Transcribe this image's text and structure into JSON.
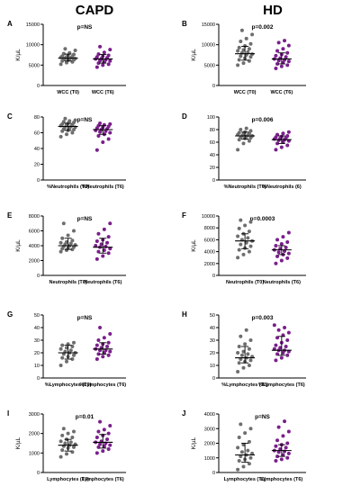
{
  "figure": {
    "col_titles": [
      "CAPD",
      "HD"
    ],
    "colors": {
      "t0": "#6e6e6e",
      "t6": "#7a1f8c",
      "axis": "#000000"
    }
  },
  "chart_data": [
    {
      "type": "scatter",
      "panel": "A",
      "column": "CAPD",
      "ylabel": "K/µL",
      "annotation": "p=NS",
      "ylim": [
        0,
        15000
      ],
      "yticks": [
        0,
        5000,
        10000,
        15000
      ],
      "categories": [
        "WCC (T0)",
        "WCC (T6)"
      ],
      "series": [
        {
          "values": [
            5200,
            5600,
            5800,
            6000,
            6200,
            6300,
            6400,
            6500,
            6600,
            6700,
            6800,
            6900,
            7000,
            7100,
            7200,
            7400,
            7600,
            7800,
            8000,
            8600,
            9000
          ],
          "summary": {
            "center": 6700,
            "low": 6000,
            "high": 7700
          }
        },
        {
          "values": [
            4500,
            5000,
            5200,
            5500,
            5800,
            6000,
            6100,
            6300,
            6500,
            6600,
            6800,
            7000,
            7200,
            7400,
            7700,
            8100,
            8800,
            9500
          ],
          "summary": {
            "center": 6500,
            "low": 5500,
            "high": 7600
          }
        }
      ]
    },
    {
      "type": "scatter",
      "panel": "B",
      "column": "HD",
      "ylabel": "K/µL",
      "annotation": "p=0.002",
      "ylim": [
        0,
        15000
      ],
      "yticks": [
        0,
        5000,
        10000,
        15000
      ],
      "categories": [
        "WCC (T0)",
        "WCC (T6)"
      ],
      "series": [
        {
          "values": [
            5000,
            5500,
            6000,
            6300,
            6700,
            7000,
            7200,
            7500,
            7700,
            8000,
            8200,
            8500,
            8700,
            9000,
            9300,
            9700,
            10200,
            10800,
            11500,
            12500,
            13500
          ],
          "summary": {
            "center": 7800,
            "low": 6200,
            "high": 9600
          }
        },
        {
          "values": [
            4200,
            4700,
            5000,
            5300,
            5600,
            5900,
            6100,
            6300,
            6500,
            6700,
            7000,
            7300,
            7600,
            8000,
            8500,
            9000,
            9800,
            10500,
            11000
          ],
          "summary": {
            "center": 6500,
            "low": 5300,
            "high": 8000
          }
        }
      ]
    },
    {
      "type": "scatter",
      "panel": "C",
      "column": "CAPD",
      "ylabel": "",
      "annotation": "p=NS",
      "ylim": [
        0,
        80
      ],
      "yticks": [
        0,
        20,
        40,
        60,
        80
      ],
      "categories": [
        "%Neutrophils (T0)",
        "%Neutrophils (T6)"
      ],
      "series": [
        {
          "values": [
            55,
            58,
            60,
            62,
            63,
            64,
            65,
            66,
            67,
            67,
            68,
            69,
            70,
            70,
            71,
            72,
            73,
            74,
            75,
            76,
            78
          ],
          "summary": {
            "center": 68,
            "low": 63,
            "high": 72
          }
        },
        {
          "values": [
            38,
            48,
            52,
            56,
            58,
            60,
            61,
            62,
            63,
            64,
            65,
            66,
            67,
            68,
            69,
            70,
            71,
            72
          ],
          "summary": {
            "center": 64,
            "low": 58,
            "high": 69
          }
        }
      ]
    },
    {
      "type": "scatter",
      "panel": "D",
      "column": "HD",
      "ylabel": "",
      "annotation": "p=0.006",
      "ylim": [
        0,
        100
      ],
      "yticks": [
        0,
        20,
        40,
        60,
        80,
        100
      ],
      "categories": [
        "%Neutrophils (T0)",
        "%Neutrophils (6)"
      ],
      "series": [
        {
          "values": [
            48,
            58,
            62,
            64,
            66,
            67,
            68,
            69,
            70,
            70,
            71,
            72,
            73,
            74,
            75,
            76,
            78,
            80,
            82
          ],
          "summary": {
            "center": 70,
            "low": 65,
            "high": 76
          }
        },
        {
          "values": [
            48,
            52,
            55,
            58,
            60,
            62,
            63,
            64,
            65,
            66,
            67,
            68,
            69,
            70,
            72,
            74,
            76
          ],
          "summary": {
            "center": 64,
            "low": 58,
            "high": 70
          }
        }
      ]
    },
    {
      "type": "scatter",
      "panel": "E",
      "column": "CAPD",
      "ylabel": "K/µL",
      "annotation": "p=NS",
      "ylim": [
        0,
        8000
      ],
      "yticks": [
        0,
        2000,
        4000,
        6000,
        8000
      ],
      "categories": [
        "Neutrophils (T0)",
        "Neutrophils (T6)"
      ],
      "series": [
        {
          "values": [
            3200,
            3400,
            3500,
            3600,
            3700,
            3800,
            3900,
            4000,
            4100,
            4200,
            4300,
            4400,
            4500,
            4700,
            5000,
            5400,
            6000,
            7000
          ],
          "summary": {
            "center": 4000,
            "low": 3500,
            "high": 5000
          }
        },
        {
          "values": [
            2200,
            2600,
            3000,
            3200,
            3400,
            3600,
            3800,
            3900,
            4000,
            4200,
            4400,
            4600,
            4800,
            5200,
            5600,
            6200,
            7000
          ],
          "summary": {
            "center": 3800,
            "low": 3000,
            "high": 5000
          }
        }
      ]
    },
    {
      "type": "scatter",
      "panel": "F",
      "column": "HD",
      "ylabel": "K/µL",
      "annotation": "p=0.0003",
      "ylim": [
        0,
        10000
      ],
      "yticks": [
        0,
        2000,
        4000,
        6000,
        8000,
        10000
      ],
      "categories": [
        "Neutrophils (T0)",
        "Neutrophils (T6)"
      ],
      "series": [
        {
          "values": [
            3000,
            3500,
            4000,
            4300,
            4600,
            4900,
            5200,
            5500,
            5800,
            6000,
            6300,
            6600,
            7000,
            7400,
            7900,
            8400,
            9000,
            9300
          ],
          "summary": {
            "center": 5800,
            "low": 4500,
            "high": 7000
          }
        },
        {
          "values": [
            2000,
            2500,
            2900,
            3200,
            3500,
            3700,
            3900,
            4100,
            4300,
            4500,
            4700,
            5000,
            5300,
            5600,
            6000,
            6500,
            7200
          ],
          "summary": {
            "center": 4300,
            "low": 3500,
            "high": 5000
          }
        }
      ]
    },
    {
      "type": "scatter",
      "panel": "G",
      "column": "CAPD",
      "ylabel": "",
      "annotation": "p=NS",
      "ylim": [
        0,
        50
      ],
      "yticks": [
        0,
        10,
        20,
        30,
        40,
        50
      ],
      "categories": [
        "%Lymphocytes (T0)",
        "%Lymphocytes (T6)"
      ],
      "series": [
        {
          "values": [
            10,
            13,
            15,
            16,
            17,
            18,
            19,
            20,
            20,
            21,
            22,
            23,
            24,
            25,
            26,
            27,
            28
          ],
          "summary": {
            "center": 20,
            "low": 15,
            "high": 26
          }
        },
        {
          "values": [
            15,
            17,
            18,
            19,
            20,
            21,
            22,
            22,
            23,
            24,
            25,
            26,
            27,
            28,
            30,
            32,
            35,
            40
          ],
          "summary": {
            "center": 23,
            "low": 19,
            "high": 28
          }
        }
      ]
    },
    {
      "type": "scatter",
      "panel": "H",
      "column": "HD",
      "ylabel": "",
      "annotation": "p=0.003",
      "ylim": [
        0,
        50
      ],
      "yticks": [
        0,
        10,
        20,
        30,
        40,
        50
      ],
      "categories": [
        "%Lymphocytes (T0)",
        "%Lymphocytes (T6)"
      ],
      "series": [
        {
          "values": [
            5,
            8,
            10,
            12,
            13,
            14,
            15,
            16,
            17,
            18,
            19,
            20,
            21,
            23,
            25,
            27,
            30,
            33,
            38
          ],
          "summary": {
            "center": 16,
            "low": 12,
            "high": 25
          }
        },
        {
          "values": [
            14,
            16,
            18,
            19,
            20,
            21,
            22,
            22,
            23,
            24,
            25,
            26,
            28,
            30,
            32,
            34,
            36,
            38,
            40,
            42
          ],
          "summary": {
            "center": 22,
            "low": 18,
            "high": 33
          }
        }
      ]
    },
    {
      "type": "scatter",
      "panel": "I",
      "column": "CAPD",
      "ylabel": "K/µL",
      "annotation": "p=0.01",
      "ylim": [
        0,
        3000
      ],
      "yticks": [
        0,
        1000,
        2000,
        3000
      ],
      "categories": [
        "Lymphocytes (T0)",
        "Lymphocytes (T6)"
      ],
      "series": [
        {
          "values": [
            800,
            950,
            1050,
            1150,
            1250,
            1300,
            1350,
            1400,
            1450,
            1500,
            1550,
            1600,
            1700,
            1800,
            1900,
            2000,
            2100,
            2250
          ],
          "summary": {
            "center": 1400,
            "low": 1100,
            "high": 1700
          }
        },
        {
          "values": [
            1000,
            1100,
            1200,
            1300,
            1350,
            1400,
            1450,
            1500,
            1550,
            1600,
            1700,
            1800,
            1900,
            2000,
            2100,
            2200,
            2400,
            2600
          ],
          "summary": {
            "center": 1550,
            "low": 1250,
            "high": 1950
          }
        }
      ]
    },
    {
      "type": "scatter",
      "panel": "J",
      "column": "HD",
      "ylabel": "K/µL",
      "annotation": "p=NS",
      "ylim": [
        0,
        4000
      ],
      "yticks": [
        0,
        1000,
        2000,
        3000,
        4000
      ],
      "categories": [
        "Lymphocytes (T0)",
        "Lymphocytes (T6)"
      ],
      "series": [
        {
          "values": [
            200,
            400,
            600,
            800,
            900,
            1000,
            1100,
            1200,
            1300,
            1400,
            1500,
            1700,
            1900,
            2100,
            2400,
            2700,
            3000,
            3300
          ],
          "summary": {
            "center": 1200,
            "low": 700,
            "high": 2000
          }
        },
        {
          "values": [
            800,
            900,
            1000,
            1100,
            1200,
            1300,
            1400,
            1450,
            1500,
            1600,
            1700,
            1800,
            1900,
            2000,
            2200,
            2500,
            2800,
            3100,
            3500
          ],
          "summary": {
            "center": 1500,
            "low": 1100,
            "high": 1900
          }
        }
      ]
    }
  ]
}
